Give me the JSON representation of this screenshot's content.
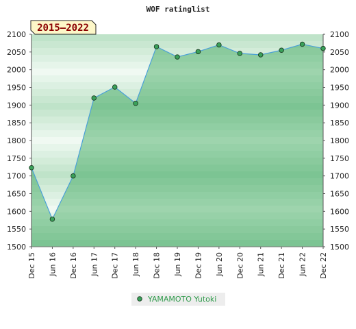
{
  "chart_data": {
    "type": "area",
    "title": "WOF ratinglist",
    "period_badge": "2015–2022",
    "xlabel": "",
    "ylabel": "",
    "ylim": [
      1500,
      2100
    ],
    "yticks": [
      1500,
      1550,
      1600,
      1650,
      1700,
      1750,
      1800,
      1850,
      1900,
      1950,
      2000,
      2050,
      2100
    ],
    "categories": [
      "Dec 15",
      "Jun 16",
      "Dec 16",
      "Jun 17",
      "Dec 17",
      "Jun 18",
      "Dec 18",
      "Jun 19",
      "Dec 19",
      "Jun 20",
      "Dec 20",
      "Jun 21",
      "Dec 21",
      "Jun 22",
      "Dec 22"
    ],
    "series": [
      {
        "name": "YAMAMOTO Yutoki",
        "values": [
          1723,
          1578,
          1700,
          1920,
          1951,
          1905,
          2065,
          2036,
          2051,
          2070,
          2046,
          2042,
          2055,
          2072,
          2060
        ]
      }
    ],
    "grid": true,
    "legend_position": "bottom-center",
    "colors": {
      "line": "#4aa0d8",
      "marker_fill": "#3aa15a",
      "marker_stroke": "#1b3b22",
      "fill_dark": "#7cc493",
      "fill_light": "#9ed4ad",
      "bg_dark": "#bfe3c9",
      "bg_light": "#f0f9f2",
      "badge_bg": "#fdf7c8",
      "badge_text": "#8b0000",
      "legend_text": "#2e9a4a",
      "legend_bg": "#ededed"
    }
  }
}
